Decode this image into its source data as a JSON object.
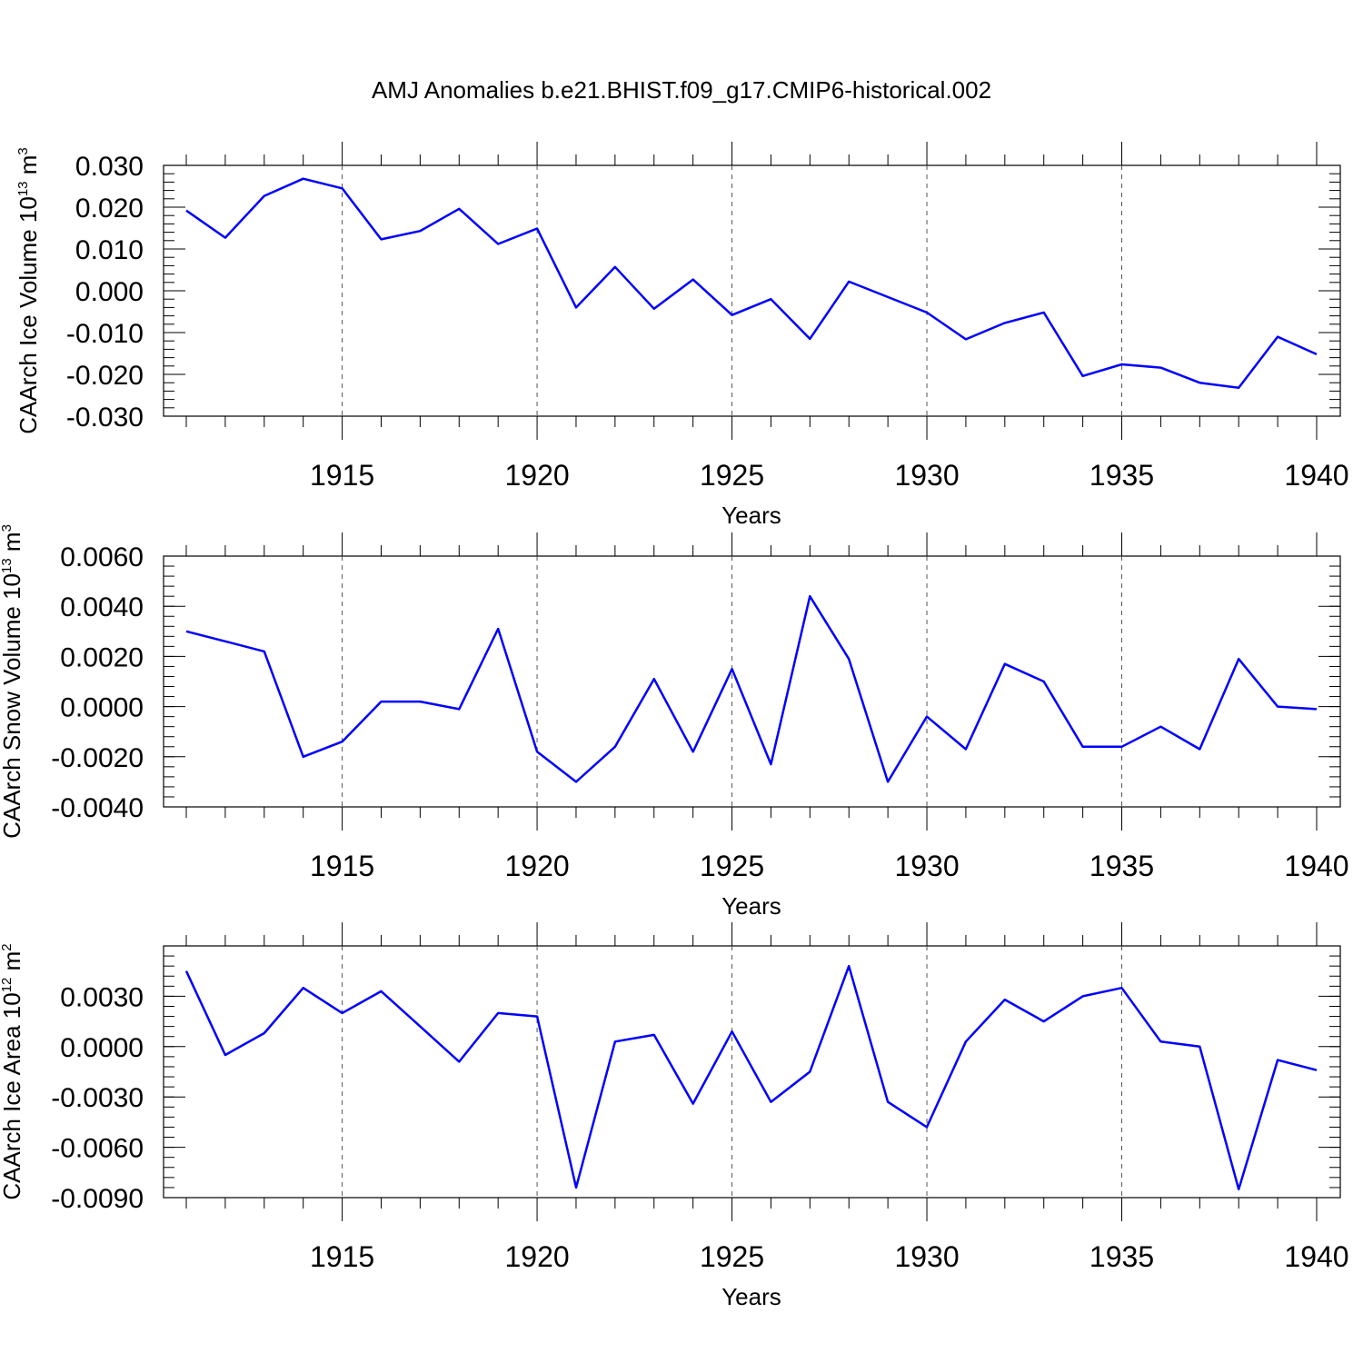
{
  "title": "AMJ Anomalies b.e21.BHIST.f09_g17.CMIP6-historical.002",
  "colors": {
    "series": "#0000ff",
    "frame": "#000000",
    "grid": "#555555"
  },
  "chart_data": [
    {
      "type": "line",
      "xlabel": "Years",
      "ylabel_text": "CAArch Ice Volume 10",
      "ylabel_exp": "13",
      "ylabel_unit": " m",
      "ylabel_unit_exp": "3",
      "xlim": [
        1911,
        1940
      ],
      "ylim": [
        -0.03,
        0.03
      ],
      "xticks": [
        1915,
        1920,
        1925,
        1930,
        1935,
        1940
      ],
      "yticks": [
        0.03,
        0.02,
        0.01,
        0.0,
        -0.01,
        -0.02,
        -0.03
      ],
      "ytick_labels": [
        "0.030",
        "0.020",
        "0.010",
        "0.000",
        "-0.010",
        "-0.020",
        "-0.030"
      ],
      "grid": "vertical dashed at major x ticks",
      "x": [
        1911,
        1912,
        1913,
        1914,
        1915,
        1916,
        1917,
        1918,
        1919,
        1920,
        1921,
        1922,
        1923,
        1924,
        1925,
        1926,
        1927,
        1928,
        1929,
        1930,
        1931,
        1932,
        1933,
        1934,
        1935,
        1936,
        1937,
        1938,
        1939,
        1940
      ],
      "series": [
        {
          "values": [
            0.0192,
            0.0127,
            0.0227,
            0.0268,
            0.0245,
            0.0123,
            0.0143,
            0.0196,
            0.0112,
            0.0149,
            -0.004,
            0.0057,
            -0.0043,
            0.0027,
            -0.0058,
            -0.002,
            -0.0115,
            0.0022,
            -0.0015,
            -0.0052,
            -0.0116,
            -0.0077,
            -0.0052,
            -0.0204,
            -0.0176,
            -0.0184,
            -0.022,
            -0.0232,
            -0.011,
            -0.0152
          ]
        }
      ]
    },
    {
      "type": "line",
      "xlabel": "Years",
      "ylabel_text": "CAArch Snow Volume 10",
      "ylabel_exp": "13",
      "ylabel_unit": " m",
      "ylabel_unit_exp": "3",
      "xlim": [
        1911,
        1940
      ],
      "ylim": [
        -0.004,
        0.006
      ],
      "xticks": [
        1915,
        1920,
        1925,
        1930,
        1935,
        1940
      ],
      "yticks": [
        0.006,
        0.004,
        0.002,
        0.0,
        -0.002,
        -0.004
      ],
      "ytick_labels": [
        "0.0060",
        "0.0040",
        "0.0020",
        "0.0000",
        "-0.0020",
        "-0.0040"
      ],
      "grid": "vertical dashed at major x ticks",
      "x": [
        1911,
        1912,
        1913,
        1914,
        1915,
        1916,
        1917,
        1918,
        1919,
        1920,
        1921,
        1922,
        1923,
        1924,
        1925,
        1926,
        1927,
        1928,
        1929,
        1930,
        1931,
        1932,
        1933,
        1934,
        1935,
        1936,
        1937,
        1938,
        1939,
        1940
      ],
      "series": [
        {
          "values": [
            0.003,
            0.0026,
            0.0022,
            -0.002,
            -0.0014,
            0.0002,
            0.0002,
            -0.0001,
            0.0031,
            -0.0018,
            -0.003,
            -0.0016,
            0.0011,
            -0.0018,
            0.0015,
            -0.0023,
            0.0044,
            0.0019,
            -0.003,
            -0.0004,
            -0.0017,
            0.0017,
            0.001,
            -0.0016,
            -0.0016,
            -0.0008,
            -0.0017,
            0.0019,
            0.0,
            -0.0001
          ]
        }
      ]
    },
    {
      "type": "line",
      "xlabel": "Years",
      "ylabel_text": "CAArch Ice Area 10",
      "ylabel_exp": "12",
      "ylabel_unit": " m",
      "ylabel_unit_exp": "2",
      "xlim": [
        1911,
        1940
      ],
      "ylim": [
        -0.009,
        0.006
      ],
      "xticks": [
        1915,
        1920,
        1925,
        1930,
        1935,
        1940
      ],
      "yticks": [
        0.003,
        0.0,
        -0.003,
        -0.006,
        -0.009
      ],
      "ytick_labels": [
        "0.0030",
        "0.0000",
        "-0.0030",
        "-0.0060",
        "-0.0090"
      ],
      "grid": "vertical dashed at major x ticks",
      "x": [
        1911,
        1912,
        1913,
        1914,
        1915,
        1916,
        1917,
        1918,
        1919,
        1920,
        1921,
        1922,
        1923,
        1924,
        1925,
        1926,
        1927,
        1928,
        1929,
        1930,
        1931,
        1932,
        1933,
        1934,
        1935,
        1936,
        1937,
        1938,
        1939,
        1940
      ],
      "series": [
        {
          "values": [
            0.0045,
            -0.0005,
            0.0008,
            0.0035,
            0.002,
            0.0033,
            0.0012,
            -0.0009,
            0.002,
            0.0018,
            -0.0084,
            0.0003,
            0.0007,
            -0.0034,
            0.0009,
            -0.0033,
            -0.0015,
            0.0048,
            -0.0033,
            -0.0048,
            0.0003,
            0.0028,
            0.0015,
            0.003,
            0.0035,
            0.0003,
            0.0,
            -0.0085,
            -0.0008,
            -0.0014
          ]
        }
      ]
    }
  ]
}
